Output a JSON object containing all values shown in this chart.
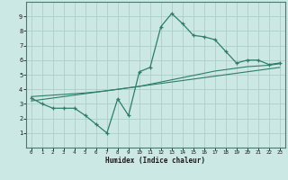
{
  "xlabel": "Humidex (Indice chaleur)",
  "x_data": [
    0,
    1,
    2,
    3,
    4,
    5,
    6,
    7,
    8,
    9,
    10,
    11,
    12,
    13,
    14,
    15,
    16,
    17,
    18,
    19,
    20,
    21,
    22,
    23
  ],
  "y_line": [
    3.4,
    3.0,
    2.7,
    2.7,
    2.7,
    2.2,
    1.6,
    1.0,
    3.35,
    2.2,
    5.2,
    5.5,
    8.3,
    9.2,
    8.5,
    7.7,
    7.6,
    7.4,
    6.6,
    5.8,
    6.0,
    6.0,
    5.7,
    5.8
  ],
  "y_trend1": [
    3.2,
    3.3,
    3.4,
    3.5,
    3.6,
    3.7,
    3.8,
    3.9,
    4.0,
    4.1,
    4.2,
    4.3,
    4.4,
    4.5,
    4.6,
    4.7,
    4.8,
    4.9,
    5.0,
    5.1,
    5.2,
    5.3,
    5.4,
    5.5
  ],
  "y_trend2": [
    3.5,
    3.55,
    3.6,
    3.65,
    3.7,
    3.75,
    3.82,
    3.9,
    4.0,
    4.1,
    4.2,
    4.35,
    4.5,
    4.65,
    4.8,
    4.95,
    5.1,
    5.25,
    5.35,
    5.45,
    5.55,
    5.6,
    5.65,
    5.75
  ],
  "line_color": "#2d7d6b",
  "bg_color": "#cce8e4",
  "grid_color": "#aacec9",
  "ylim": [
    0,
    10
  ],
  "xlim": [
    -0.5,
    23.5
  ],
  "yticks": [
    1,
    2,
    3,
    4,
    5,
    6,
    7,
    8,
    9
  ],
  "xticks": [
    0,
    1,
    2,
    3,
    4,
    5,
    6,
    7,
    8,
    9,
    10,
    11,
    12,
    13,
    14,
    15,
    16,
    17,
    18,
    19,
    20,
    21,
    22,
    23
  ]
}
